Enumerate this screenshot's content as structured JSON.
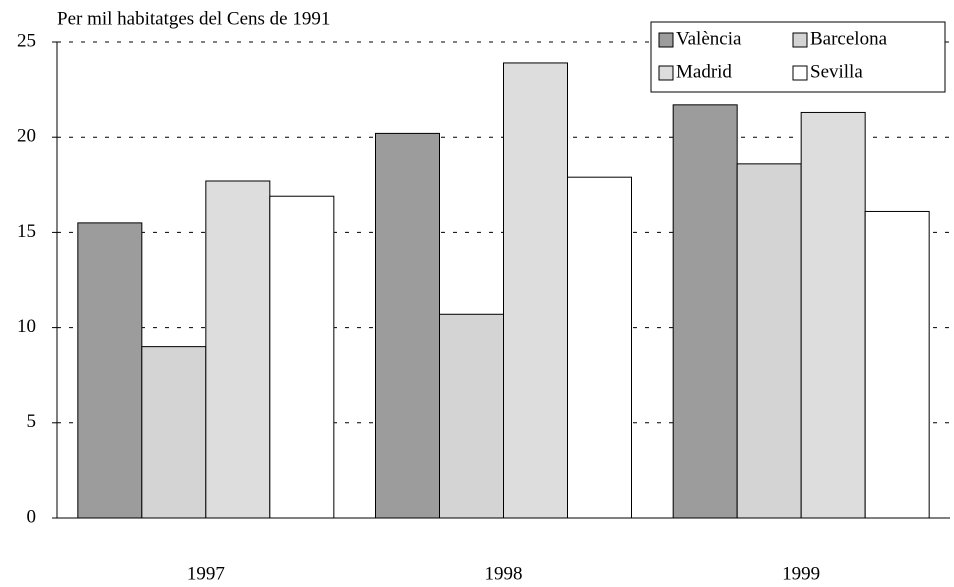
{
  "chart_data": {
    "type": "bar",
    "title": "Per mil habitatges del Cens de 1991",
    "categories": [
      "1997",
      "1998",
      "1999"
    ],
    "series": [
      {
        "name": "València",
        "color": "#9c9c9c",
        "values": [
          15.5,
          20.2,
          21.7
        ]
      },
      {
        "name": "Barcelona",
        "color": "#d4d4d4",
        "values": [
          9.0,
          10.7,
          18.6
        ]
      },
      {
        "name": "Madrid",
        "color": "#dddddd",
        "values": [
          17.7,
          23.9,
          21.3
        ]
      },
      {
        "name": "Sevilla",
        "color": "#ffffff",
        "values": [
          16.9,
          17.9,
          16.1
        ]
      }
    ],
    "ylim": [
      0,
      25
    ],
    "yticks": [
      0,
      5,
      10,
      15,
      20,
      25
    ],
    "grid": true,
    "legend": "top-right"
  }
}
